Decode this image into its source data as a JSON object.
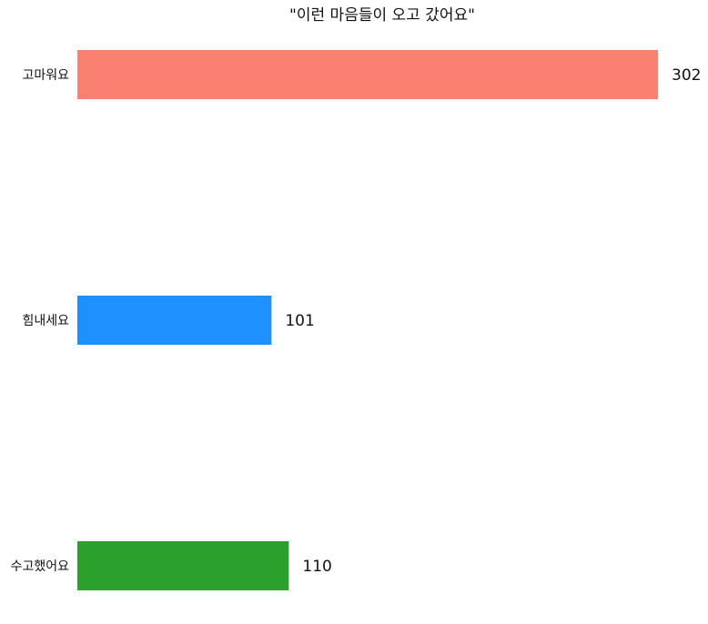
{
  "chart_data": {
    "type": "bar",
    "orientation": "horizontal",
    "title": "\"이런 마음들이 오고 갔어요\"",
    "categories": [
      "고마워요",
      "힘내세요",
      "수고했어요"
    ],
    "values": [
      302,
      101,
      110
    ],
    "colors": [
      "#fa8072",
      "#1e90ff",
      "#2ca02c"
    ],
    "xlim": [
      0,
      302
    ],
    "grid": false,
    "legend": "none",
    "axes_visible": false
  }
}
